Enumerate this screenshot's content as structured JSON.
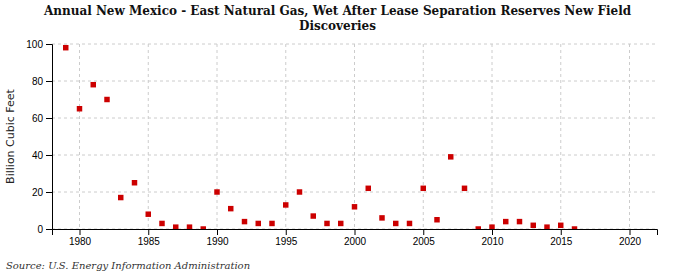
{
  "chart_data": {
    "type": "scatter",
    "title": "Annual New Mexico - East Natural Gas, Wet After Lease Separation Reserves New Field\nDiscoveries",
    "ylabel": "Billion Cubic Feet",
    "source": "Source: U.S. Energy Information Administration",
    "x": [
      1979,
      1980,
      1981,
      1982,
      1983,
      1984,
      1985,
      1986,
      1987,
      1988,
      1989,
      1990,
      1991,
      1992,
      1993,
      1994,
      1995,
      1996,
      1997,
      1998,
      1999,
      2000,
      2001,
      2002,
      2003,
      2004,
      2005,
      2006,
      2007,
      2008,
      2009,
      2010,
      2011,
      2012,
      2013,
      2014,
      2015,
      2016
    ],
    "values": [
      98,
      65,
      78,
      70,
      17,
      25,
      8,
      3,
      1,
      1,
      0,
      20,
      11,
      4,
      3,
      3,
      13,
      20,
      7,
      3,
      3,
      12,
      22,
      6,
      3,
      3,
      22,
      5,
      39,
      22,
      0,
      1,
      4,
      4,
      2,
      1,
      2,
      0
    ],
    "color": "#cc0000",
    "marker": "square",
    "xlim": [
      1978,
      2022
    ],
    "ylim": [
      0,
      100
    ],
    "xticks": [
      1980,
      1985,
      1990,
      1995,
      2000,
      2005,
      2010,
      2015,
      2020
    ],
    "yticks": [
      0,
      20,
      40,
      60,
      80,
      100
    ],
    "grid": true
  }
}
